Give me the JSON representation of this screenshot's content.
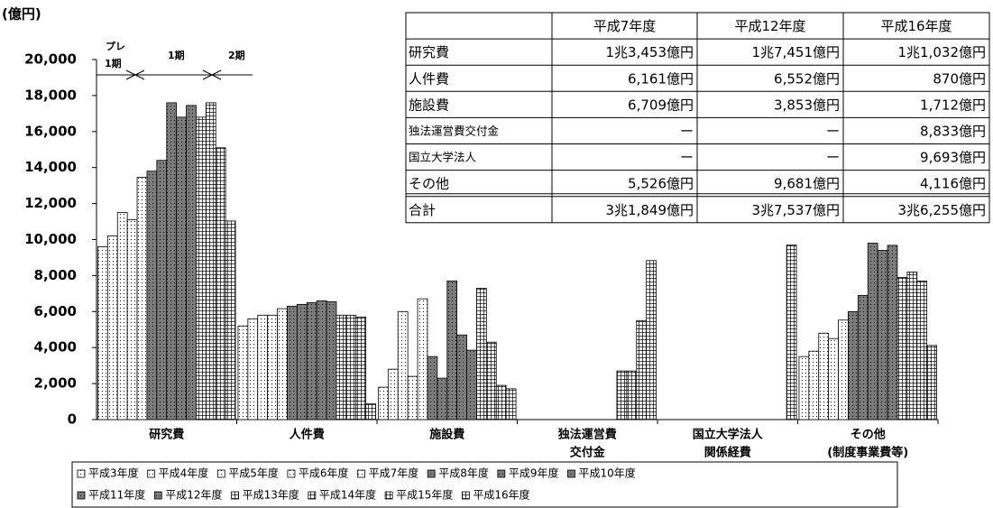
{
  "chart_data": {
    "type": "bar",
    "y_label": "(億円)",
    "categories": [
      [
        "研究費"
      ],
      [
        "人件費"
      ],
      [
        "施設費"
      ],
      [
        "独法運営費",
        "交付金"
      ],
      [
        "国立大学法人",
        "関係経費"
      ],
      [
        "その他",
        "(制度事業費等)"
      ]
    ],
    "ylim": [
      0,
      20000
    ],
    "yticks": [
      0,
      {
        "value": 2000,
        "label": "2,000"
      },
      {
        "value": 4000,
        "label": "4,000"
      },
      {
        "value": 6000,
        "label": "6,000"
      },
      {
        "value": 8000,
        "label": "8,000"
      },
      {
        "value": 10000,
        "label": "10,000"
      },
      {
        "value": 12000,
        "label": "12,000"
      },
      {
        "value": 14000,
        "label": "14,000"
      },
      {
        "value": 16000,
        "label": "16,000"
      },
      {
        "value": 18000,
        "label": "18,000"
      },
      {
        "value": 20000,
        "label": "20,000"
      }
    ],
    "annotations": [
      [
        "プレ",
        "1期"
      ],
      "1期",
      "2期"
    ],
    "series": [
      {
        "name": "平成3年度",
        "color": "#ffffff",
        "hatch": "dots",
        "values": [
          9600,
          5200,
          1800,
          null,
          null,
          3500
        ]
      },
      {
        "name": "平成4年度",
        "color": "#ffffff",
        "hatch": "dots",
        "values": [
          10200,
          5600,
          2800,
          null,
          null,
          3800
        ]
      },
      {
        "name": "平成5年度",
        "color": "#ffffff",
        "hatch": "dots",
        "values": [
          11500,
          5800,
          6000,
          null,
          null,
          4800
        ]
      },
      {
        "name": "平成6年度",
        "color": "#ffffff",
        "hatch": "dots",
        "values": [
          11100,
          5800,
          2400,
          null,
          null,
          4500
        ]
      },
      {
        "name": "平成7年度",
        "color": "#ffffff",
        "hatch": "dots",
        "values": [
          13453,
          6161,
          6709,
          null,
          null,
          5526
        ]
      },
      {
        "name": "平成8年度",
        "color": "#7a7a7a",
        "hatch": "dots",
        "values": [
          13800,
          6300,
          3500,
          null,
          null,
          6000
        ]
      },
      {
        "name": "平成9年度",
        "color": "#7a7a7a",
        "hatch": "dots",
        "values": [
          14400,
          6400,
          2300,
          null,
          null,
          6900
        ]
      },
      {
        "name": "平成10年度",
        "color": "#7a7a7a",
        "hatch": "dots",
        "values": [
          17600,
          6500,
          7700,
          null,
          null,
          9800
        ]
      },
      {
        "name": "平成11年度",
        "color": "#7a7a7a",
        "hatch": "dots",
        "values": [
          16800,
          6600,
          4700,
          null,
          null,
          9400
        ]
      },
      {
        "name": "平成12年度",
        "color": "#7a7a7a",
        "hatch": "dots",
        "values": [
          17451,
          6552,
          3853,
          null,
          null,
          9681
        ]
      },
      {
        "name": "平成13年度",
        "color": "#ffffff",
        "hatch": "grid",
        "values": [
          16800,
          5800,
          7300,
          2700,
          null,
          7900
        ]
      },
      {
        "name": "平成14年度",
        "color": "#ffffff",
        "hatch": "grid",
        "values": [
          17600,
          5800,
          4300,
          2700,
          null,
          8200
        ]
      },
      {
        "name": "平成15年度",
        "color": "#ffffff",
        "hatch": "grid",
        "values": [
          15100,
          5700,
          1900,
          5500,
          null,
          7700
        ]
      },
      {
        "name": "平成16年度",
        "color": "#ffffff",
        "hatch": "grid",
        "values": [
          11032,
          870,
          1712,
          8833,
          9693,
          4116
        ]
      }
    ]
  },
  "table": {
    "columns": [
      "平成7年度",
      "平成12年度",
      "平成16年度"
    ],
    "rows": [
      [
        "研究費",
        "1兆3,453億円",
        "1兆7,451億円",
        "1兆1,032億円"
      ],
      [
        "人件費",
        "6,161億円",
        "6,552億円",
        "870億円"
      ],
      [
        "施設費",
        "6,709億円",
        "3,853億円",
        "1,712億円"
      ],
      [
        "独法運営費交付金",
        "ー",
        "ー",
        "8,833億円"
      ],
      [
        "国立大学法人",
        "ー",
        "ー",
        "9,693億円"
      ],
      [
        "その他",
        "5,526億円",
        "9,681億円",
        "4,116億円"
      ],
      [
        "合計",
        "3兆1,849億円",
        "3兆7,537億円",
        "3兆6,255億円"
      ]
    ]
  }
}
